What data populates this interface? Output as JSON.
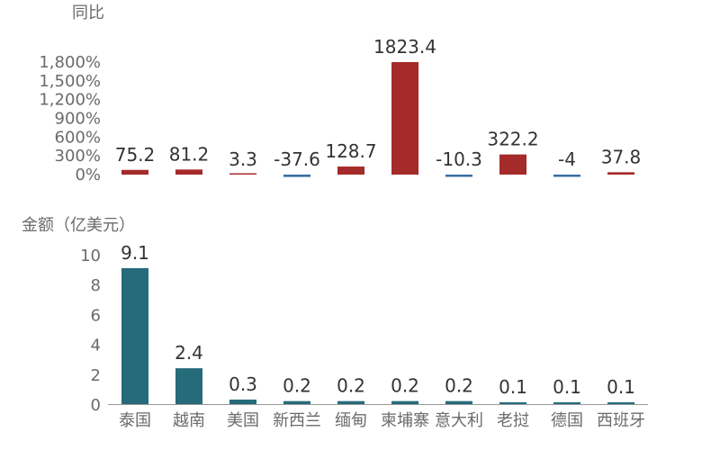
{
  "chart_data": [
    {
      "type": "bar",
      "ylabel": "同比",
      "categories": [
        "泰国",
        "越南",
        "美国",
        "新西兰",
        "缅甸",
        "柬埔寨",
        "意大利",
        "老挝",
        "德国",
        "西班牙"
      ],
      "values": [
        75.2,
        81.2,
        3.3,
        -37.6,
        128.7,
        1823.4,
        -10.3,
        322.2,
        -4,
        37.8
      ],
      "value_labels": [
        "75.2",
        "81.2",
        "3.3",
        "-37.6",
        "128.7",
        "1823.4",
        "-10.3",
        "322.2",
        "-4",
        "37.8"
      ],
      "ylim": [
        0,
        1800
      ],
      "yticks": [
        0,
        300,
        600,
        900,
        1200,
        1500,
        1800
      ],
      "ytick_labels": [
        "0%",
        "300%",
        "600%",
        "900%",
        "1,200%",
        "1,500%",
        "1,800%"
      ],
      "colors": {
        "positive": "#a52a2a",
        "negative": "#3a6ea5"
      },
      "grid": false
    },
    {
      "type": "bar",
      "ylabel": "金额（亿美元）",
      "categories": [
        "泰国",
        "越南",
        "美国",
        "新西兰",
        "缅甸",
        "柬埔寨",
        "意大利",
        "老挝",
        "德国",
        "西班牙"
      ],
      "values": [
        9.1,
        2.4,
        0.3,
        0.2,
        0.2,
        0.2,
        0.2,
        0.1,
        0.1,
        0.1
      ],
      "value_labels": [
        "9.1",
        "2.4",
        "0.3",
        "0.2",
        "0.2",
        "0.2",
        "0.2",
        "0.1",
        "0.1",
        "0.1"
      ],
      "ylim": [
        0,
        10
      ],
      "yticks": [
        0,
        2,
        4,
        6,
        8,
        10
      ],
      "ytick_labels": [
        "0",
        "2",
        "4",
        "6",
        "8",
        "10"
      ],
      "colors": {
        "bar": "#256b7a"
      },
      "grid": false
    }
  ]
}
